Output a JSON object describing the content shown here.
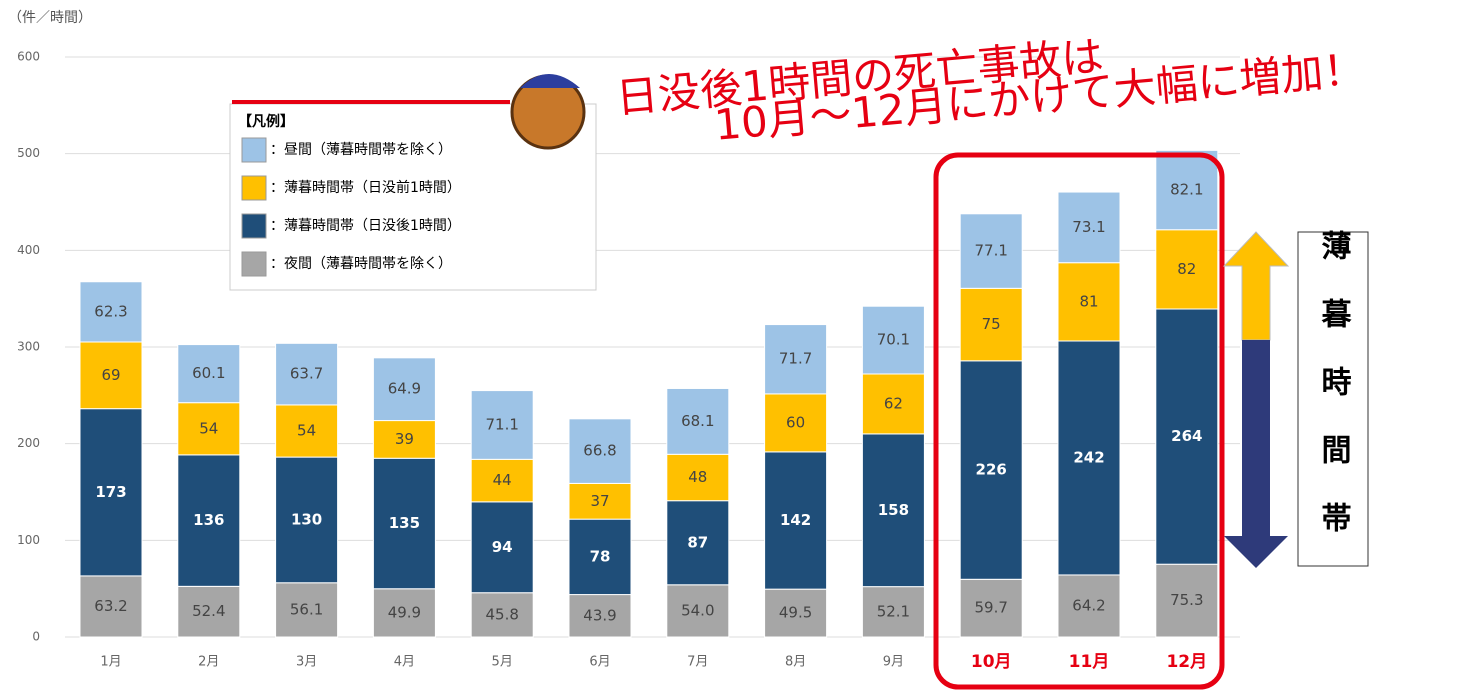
{
  "chart_data": {
    "type": "stacked_bar",
    "y_unit": "（件／時間）",
    "categories": [
      "1月",
      "2月",
      "3月",
      "4月",
      "5月",
      "6月",
      "7月",
      "8月",
      "9月",
      "10月",
      "11月",
      "12月"
    ],
    "series": [
      {
        "name": "：夜間（薄暮時間帯を除く）",
        "color": "#a6a6a6",
        "values": [
          63.2,
          52.4,
          56.1,
          49.9,
          45.8,
          43.9,
          54.0,
          49.5,
          52.1,
          59.7,
          64.2,
          75.3
        ],
        "value_labels": [
          "63.2",
          "52.4",
          "56.1",
          "49.9",
          "45.8",
          "43.9",
          "54.0",
          "49.5",
          "52.1",
          "59.7",
          "64.2",
          "75.3"
        ]
      },
      {
        "name": "：薄暮時間帯（日没後1時間）",
        "color": "#1f4e79",
        "values": [
          173,
          136,
          130,
          135,
          94,
          78,
          87,
          142,
          158,
          226,
          242,
          264
        ]
      },
      {
        "name": "：薄暮時間帯（日没前1時間）",
        "color": "#ffc000",
        "values": [
          69,
          54,
          54,
          39,
          44,
          37,
          48,
          60,
          62,
          75,
          81,
          82
        ]
      },
      {
        "name": "：昼間（薄暮時間帯を除く）",
        "color": "#9dc3e6",
        "values": [
          62.3,
          60.1,
          63.7,
          64.9,
          71.1,
          66.8,
          68.1,
          71.7,
          70.1,
          77.1,
          73.1,
          82.1
        ]
      }
    ],
    "ylim": [
      0,
      600
    ],
    "yticks": [
      0,
      100,
      200,
      300,
      400,
      500,
      600
    ],
    "grid": true,
    "legend": "upper left",
    "legend_title": "【凡例】",
    "annotations": [
      "日没後1時間の死亡事故は",
      "10月～12月にかけて大幅に増加！"
    ],
    "side_label": "薄暮時間帯"
  }
}
